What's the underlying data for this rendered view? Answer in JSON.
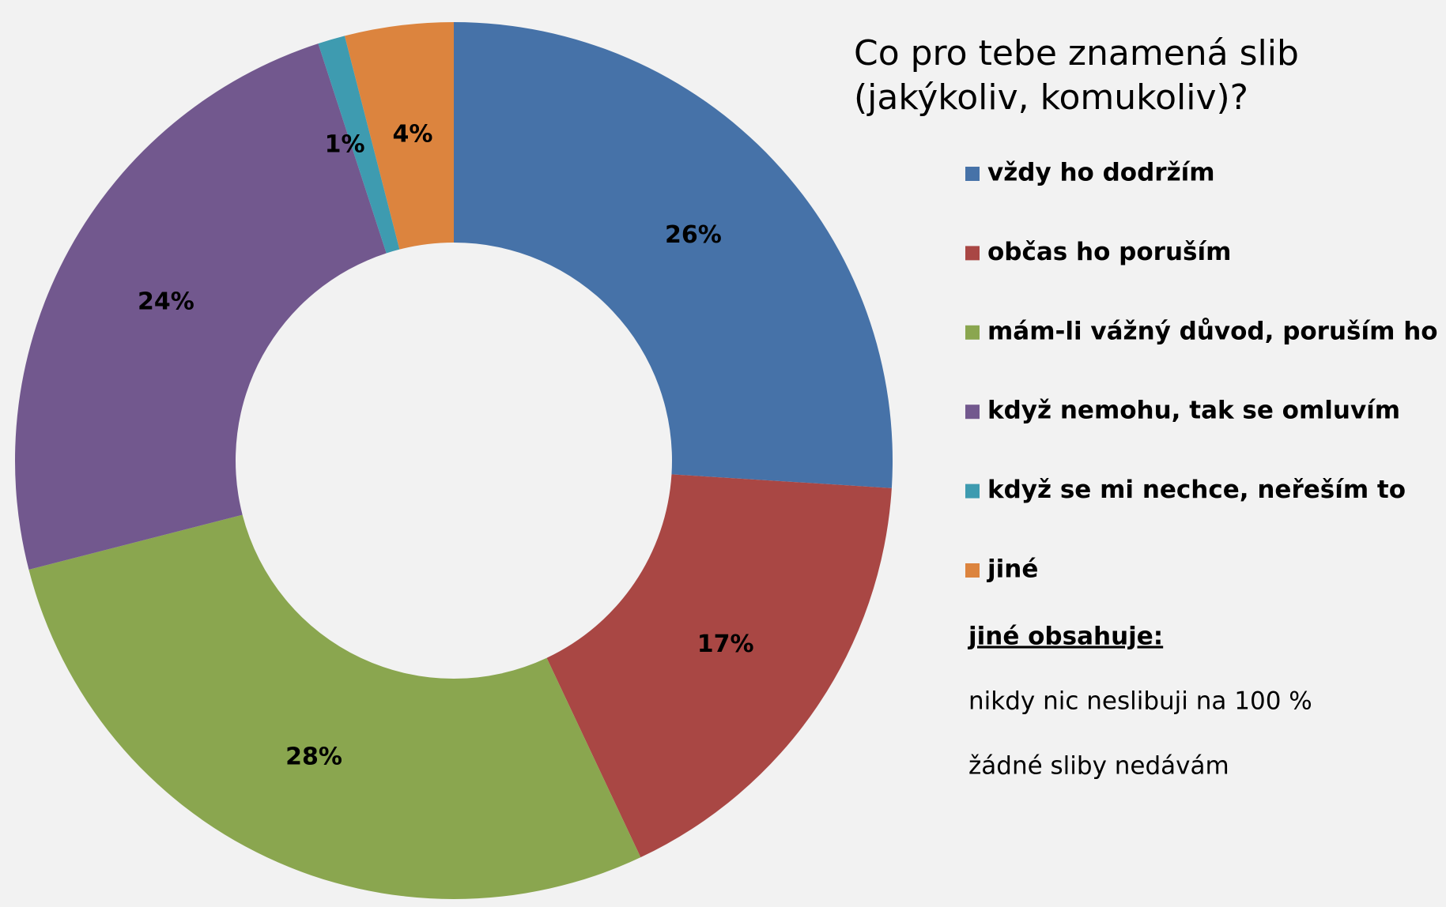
{
  "chart_data": {
    "type": "donut",
    "title": "Co pro tebe znamená slib (jakýkoliv, komukoliv)?",
    "categories": [
      "vždy ho dodržím",
      "občas ho poruším",
      "mám-li vážný důvod, poruším ho",
      "když nemohu, tak se omluvím",
      "když se mi nechce, neřeším to",
      "jiné"
    ],
    "values": [
      26,
      17,
      28,
      24,
      1,
      4
    ],
    "value_labels": [
      "26%",
      "17%",
      "28%",
      "24%",
      "1%",
      "4%"
    ],
    "colors": [
      "#4672a8",
      "#a94744",
      "#8aa64f",
      "#72588e",
      "#3e9bb0",
      "#dc843e"
    ],
    "legend": "right",
    "notes": {
      "heading": "jiné obsahuje:",
      "items": [
        "nikdy nic neslibuji na 100 %",
        "žádné sliby nedávám"
      ]
    }
  }
}
